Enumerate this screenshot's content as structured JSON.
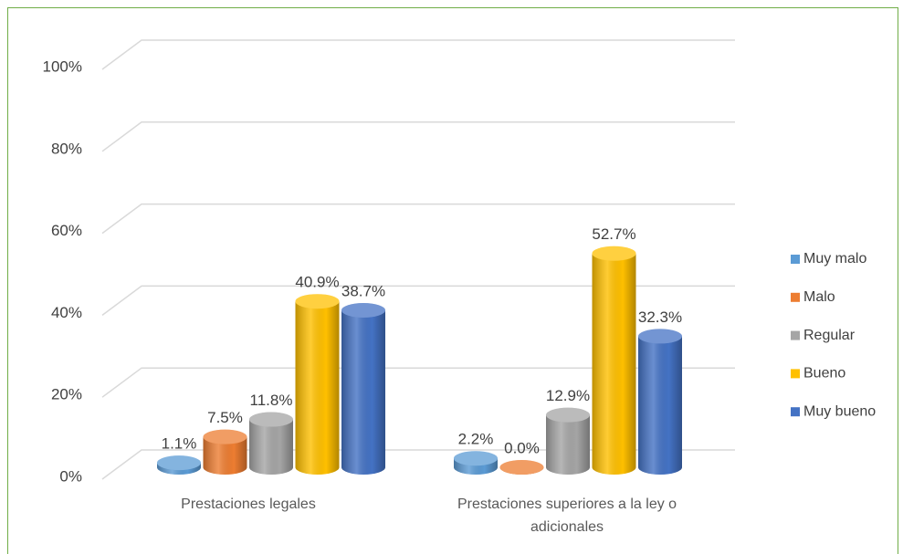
{
  "chart_data": {
    "type": "bar3d",
    "categories": [
      "Prestaciones legales",
      "Prestaciones superiores a la ley o adicionales"
    ],
    "series": [
      {
        "name": "Muy malo",
        "color": "#5b9bd5",
        "values": [
          1.1,
          2.2
        ],
        "value_labels": [
          "1.1%",
          "2.2%"
        ]
      },
      {
        "name": "Malo",
        "color": "#ed7d31",
        "values": [
          7.5,
          0.0
        ],
        "value_labels": [
          "7.5%",
          "0.0%"
        ]
      },
      {
        "name": "Regular",
        "color": "#a5a5a5",
        "values": [
          11.8,
          12.9
        ],
        "value_labels": [
          "11.8%",
          "12.9%"
        ]
      },
      {
        "name": "Bueno",
        "color": "#ffc000",
        "values": [
          40.9,
          52.7
        ],
        "value_labels": [
          "40.9%",
          "52.7%"
        ]
      },
      {
        "name": "Muy bueno",
        "color": "#4472c4",
        "values": [
          38.7,
          32.3
        ],
        "value_labels": [
          "38.7%",
          "32.3%"
        ]
      }
    ],
    "ylim": [
      0,
      100
    ],
    "yticks": [
      {
        "value": 0,
        "label": "0%"
      },
      {
        "value": 20,
        "label": "20%"
      },
      {
        "value": 40,
        "label": "40%"
      },
      {
        "value": 60,
        "label": "60%"
      },
      {
        "value": 80,
        "label": "80%"
      },
      {
        "value": 100,
        "label": "100%"
      }
    ],
    "grid": true,
    "legend": "right"
  }
}
